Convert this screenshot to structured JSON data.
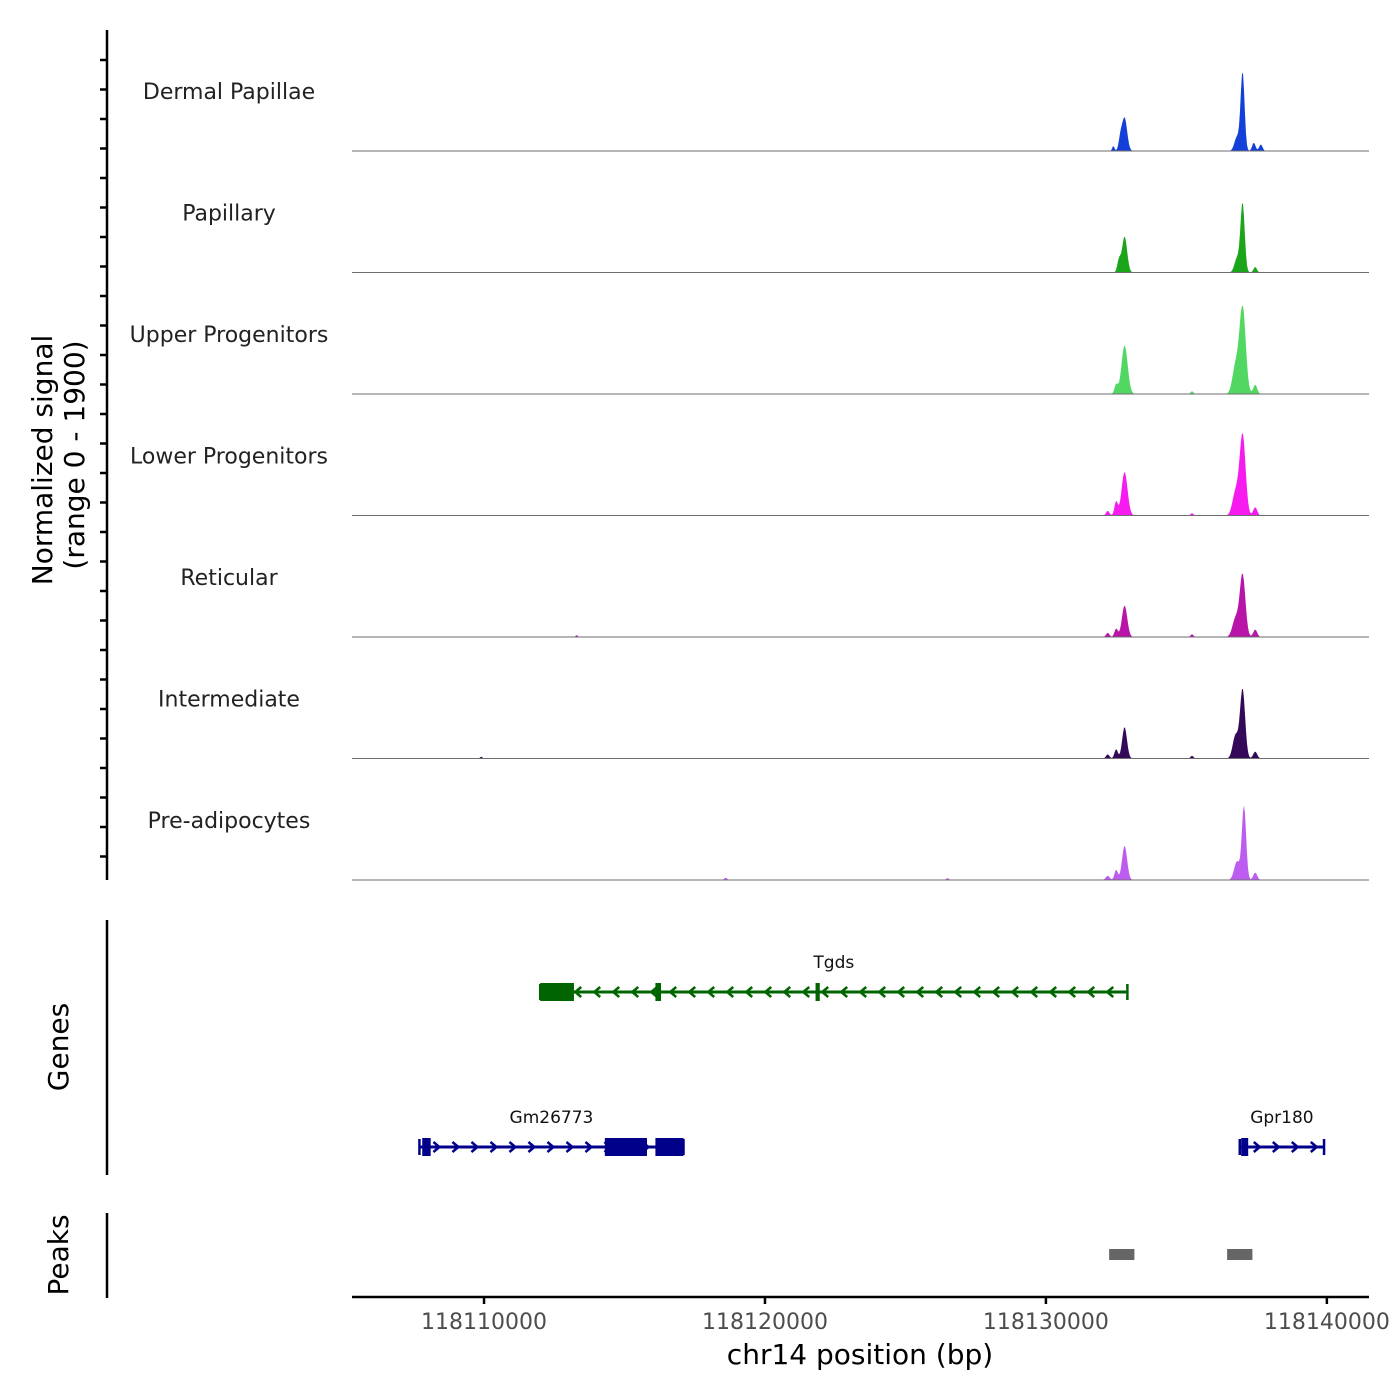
{
  "chart_data": {
    "type": "area",
    "title": "",
    "ylabel_line1": "Normalized signal",
    "ylabel_line2": "(range 0 - 1900)",
    "xlabel": "chr14 position (bp)",
    "xlim": [
      118105300,
      118141500
    ],
    "ylim": [
      0,
      1900
    ],
    "x_ticks": [
      118110000,
      118120000,
      118130000,
      118140000
    ],
    "x_tick_labels": [
      "118110000",
      "118120000",
      "118130000",
      "118140000"
    ],
    "tracks": [
      {
        "name": "Dermal Papillae",
        "color": "#1240d8",
        "peaks": [
          {
            "center": 118132800,
            "width": 90,
            "height": 720
          },
          {
            "center": 118132650,
            "width": 60,
            "height": 250
          },
          {
            "center": 118132400,
            "width": 40,
            "height": 110
          },
          {
            "center": 118137000,
            "width": 70,
            "height": 1700
          },
          {
            "center": 118136800,
            "width": 90,
            "height": 300
          },
          {
            "center": 118137400,
            "width": 60,
            "height": 180
          },
          {
            "center": 118137650,
            "width": 60,
            "height": 140
          }
        ]
      },
      {
        "name": "Papillary",
        "color": "#1aa51a",
        "peaks": [
          {
            "center": 118132800,
            "width": 90,
            "height": 780
          },
          {
            "center": 118132600,
            "width": 60,
            "height": 260
          },
          {
            "center": 118137000,
            "width": 75,
            "height": 1500
          },
          {
            "center": 118136800,
            "width": 90,
            "height": 300
          },
          {
            "center": 118137450,
            "width": 60,
            "height": 120
          }
        ]
      },
      {
        "name": "Upper Progenitors",
        "color": "#52d862",
        "peaks": [
          {
            "center": 118132800,
            "width": 110,
            "height": 1050
          },
          {
            "center": 118132500,
            "width": 60,
            "height": 200
          },
          {
            "center": 118137000,
            "width": 110,
            "height": 1900
          },
          {
            "center": 118136750,
            "width": 110,
            "height": 600
          },
          {
            "center": 118137450,
            "width": 70,
            "height": 200
          },
          {
            "center": 118135200,
            "width": 50,
            "height": 60
          }
        ]
      },
      {
        "name": "Lower Progenitors",
        "color": "#f61cf0",
        "peaks": [
          {
            "center": 118132800,
            "width": 105,
            "height": 940
          },
          {
            "center": 118132500,
            "width": 60,
            "height": 300
          },
          {
            "center": 118132200,
            "width": 60,
            "height": 100
          },
          {
            "center": 118137000,
            "width": 105,
            "height": 1750
          },
          {
            "center": 118136750,
            "width": 110,
            "height": 500
          },
          {
            "center": 118137450,
            "width": 70,
            "height": 180
          },
          {
            "center": 118135200,
            "width": 50,
            "height": 50
          }
        ]
      },
      {
        "name": "Reticular",
        "color": "#b814a8",
        "peaks": [
          {
            "center": 118132800,
            "width": 95,
            "height": 680
          },
          {
            "center": 118132500,
            "width": 60,
            "height": 180
          },
          {
            "center": 118132200,
            "width": 60,
            "height": 90
          },
          {
            "center": 118137000,
            "width": 100,
            "height": 1350
          },
          {
            "center": 118136750,
            "width": 110,
            "height": 400
          },
          {
            "center": 118137450,
            "width": 70,
            "height": 160
          },
          {
            "center": 118135200,
            "width": 50,
            "height": 60
          },
          {
            "center": 118113300,
            "width": 40,
            "height": 40
          }
        ]
      },
      {
        "name": "Intermediate",
        "color": "#35095a",
        "peaks": [
          {
            "center": 118132800,
            "width": 85,
            "height": 680
          },
          {
            "center": 118132500,
            "width": 60,
            "height": 200
          },
          {
            "center": 118132200,
            "width": 60,
            "height": 90
          },
          {
            "center": 118137000,
            "width": 90,
            "height": 1500
          },
          {
            "center": 118136750,
            "width": 100,
            "height": 500
          },
          {
            "center": 118137450,
            "width": 70,
            "height": 150
          },
          {
            "center": 118135200,
            "width": 50,
            "height": 60
          },
          {
            "center": 118109900,
            "width": 40,
            "height": 40
          }
        ]
      },
      {
        "name": "Pre-adipocytes",
        "color": "#bd5df0",
        "peaks": [
          {
            "center": 118132800,
            "width": 90,
            "height": 740
          },
          {
            "center": 118132500,
            "width": 60,
            "height": 220
          },
          {
            "center": 118132200,
            "width": 70,
            "height": 90
          },
          {
            "center": 118137050,
            "width": 75,
            "height": 1600
          },
          {
            "center": 118136800,
            "width": 100,
            "height": 400
          },
          {
            "center": 118137450,
            "width": 70,
            "height": 160
          },
          {
            "center": 118118600,
            "width": 50,
            "height": 50
          },
          {
            "center": 118126500,
            "width": 50,
            "height": 40
          }
        ]
      }
    ],
    "genes": {
      "label": "Genes",
      "items": [
        {
          "name": "Tgds",
          "color": "#006400",
          "strand": "-",
          "start": 118112000,
          "end": 118132900,
          "exons": [
            [
              118112000,
              118113200
            ],
            [
              118116100,
              118116300
            ],
            [
              118121800,
              118121950
            ]
          ]
        },
        {
          "name": "Gm26773",
          "color": "#00008b",
          "strand": "+",
          "start": 118107700,
          "end": 118117100,
          "exons": [
            [
              118107800,
              118108100
            ],
            [
              118114300,
              118115800
            ],
            [
              118116100,
              118117100
            ]
          ]
        },
        {
          "name": "Gpr180",
          "color": "#00008b",
          "strand": "+",
          "start": 118136900,
          "end": 118139900,
          "exons": [
            [
              118136950,
              118137200
            ]
          ]
        }
      ]
    },
    "peaks_track": {
      "label": "Peaks",
      "color": "#666666",
      "regions": [
        [
          118132250,
          118133150
        ],
        [
          118136450,
          118137350
        ]
      ]
    }
  }
}
